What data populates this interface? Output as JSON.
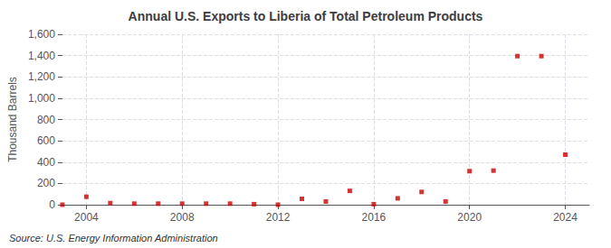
{
  "chart_data": {
    "type": "scatter",
    "title": "Annual U.S. Exports to Liberia of Total Petroleum Products",
    "ylabel": "Thousand Barrels",
    "annotation": "Source: U.S. Energy Information Administration",
    "x": [
      2003,
      2004,
      2005,
      2006,
      2007,
      2008,
      2009,
      2010,
      2011,
      2012,
      2013,
      2014,
      2015,
      2016,
      2017,
      2018,
      2019,
      2020,
      2021,
      2022,
      2023,
      2024
    ],
    "values": [
      0,
      75,
      15,
      10,
      10,
      10,
      10,
      10,
      5,
      0,
      55,
      30,
      130,
      5,
      60,
      120,
      30,
      315,
      320,
      1395,
      1395,
      470
    ],
    "color": "#cc0000",
    "marker": "square",
    "xlim": [
      2003.0,
      2025.0
    ],
    "xticks": [
      2004,
      2008,
      2012,
      2016,
      2020,
      2024
    ],
    "ylim": [
      0,
      1600
    ],
    "yticks": [
      0,
      200,
      400,
      600,
      800,
      {
        "value": 1000,
        "label": "1,000"
      },
      {
        "value": 1200,
        "label": "1,200"
      },
      {
        "value": 1400,
        "label": "1,400"
      },
      {
        "value": 1600,
        "label": "1,600"
      }
    ],
    "grid": true
  }
}
